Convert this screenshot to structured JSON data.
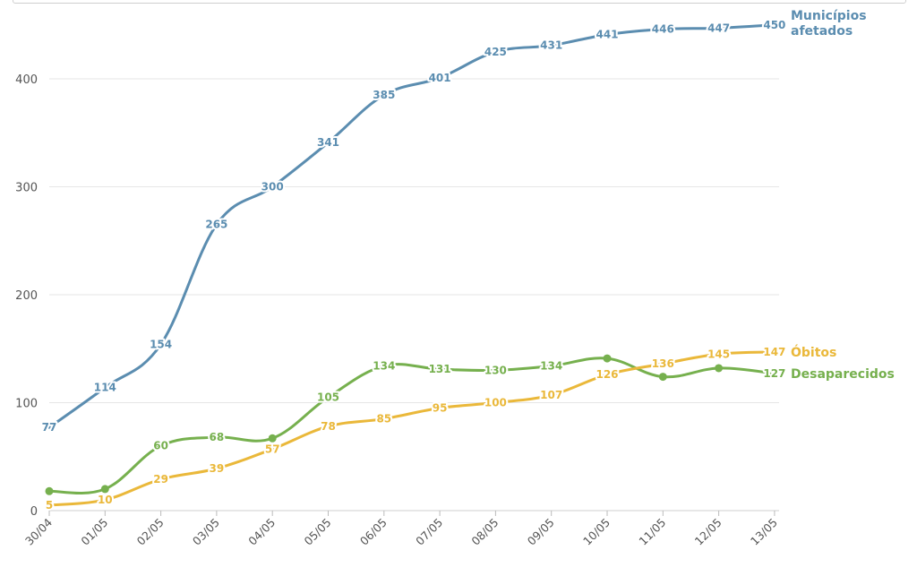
{
  "chart_data": {
    "type": "line",
    "categories": [
      "30/04",
      "01/05",
      "02/05",
      "03/05",
      "04/05",
      "05/05",
      "06/05",
      "07/05",
      "08/05",
      "09/05",
      "10/05",
      "11/05",
      "12/05",
      "13/05"
    ],
    "yticks": [
      "0",
      "100",
      "200",
      "300",
      "400"
    ],
    "ylim": [
      0,
      450
    ],
    "grid": true,
    "series": [
      {
        "key": "municipios",
        "name": "Municípios\nafetados",
        "color": "#5b8db0",
        "values": [
          77,
          114,
          154,
          265,
          300,
          341,
          385,
          401,
          425,
          431,
          441,
          446,
          447,
          450
        ],
        "labels": [
          "77",
          "114",
          "154",
          "265",
          "300",
          "341",
          "385",
          "401",
          "425",
          "431",
          "441",
          "446",
          "447",
          "450"
        ]
      },
      {
        "key": "desaparecidos",
        "name": "Desaparecidos",
        "color": "#76b04e",
        "values": [
          18,
          20,
          60,
          68,
          67,
          105,
          134,
          131,
          130,
          134,
          141,
          124,
          132,
          127
        ],
        "labels": [
          "",
          "",
          "60",
          "68",
          "",
          "105",
          "134",
          "131",
          "130",
          "134",
          "",
          "",
          "",
          "127"
        ],
        "markers": [
          0,
          1,
          4,
          10,
          11,
          12
        ]
      },
      {
        "key": "obitos",
        "name": "Óbitos",
        "color": "#eab83a",
        "values": [
          5,
          10,
          29,
          39,
          57,
          78,
          85,
          95,
          100,
          107,
          126,
          136,
          145,
          147
        ],
        "labels": [
          "5",
          "10",
          "29",
          "39",
          "57",
          "78",
          "85",
          "95",
          "100",
          "107",
          "126",
          "136",
          "145",
          "147"
        ]
      }
    ]
  }
}
